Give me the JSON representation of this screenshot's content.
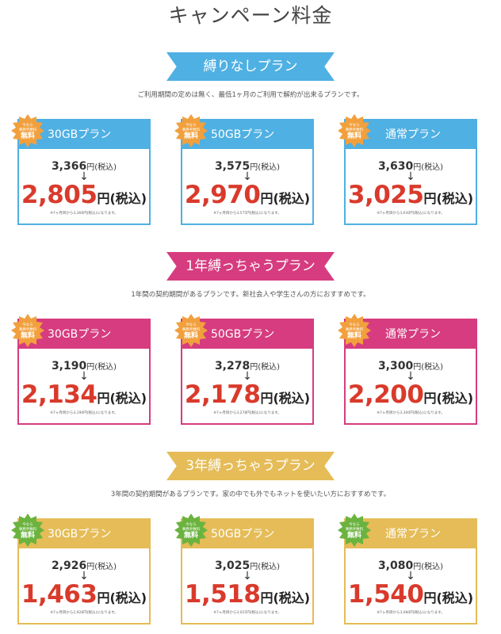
{
  "page_title": "キャンペーン料金",
  "badge": {
    "small_line": "今なら",
    "small_line2": "事務手数料",
    "big": "無料"
  },
  "colors": {
    "blue": "#4fb0e3",
    "pink": "#d63c7f",
    "gold": "#e5bc57",
    "price_red": "#d93a2b",
    "badge_orange": "#f2a03d",
    "badge_green": "#6bb33f"
  },
  "sections": [
    {
      "title": "縛りなしプラン",
      "description": "ご利用期間の定めは無く、最低1ヶ月のご利用で解約が出来るプランです。",
      "plans": [
        {
          "name": "30GBプラン",
          "regular": "3,366",
          "campaign": "2,805",
          "note": "※7ヶ月目から3,366円(税込)になります。"
        },
        {
          "name": "50GBプラン",
          "regular": "3,575",
          "campaign": "2,970",
          "note": "※7ヶ月目から3,575円(税込)になります。"
        },
        {
          "name": "通常プラン",
          "regular": "3,630",
          "campaign": "3,025",
          "note": "※7ヶ月目から3,630円(税込)になります。"
        }
      ]
    },
    {
      "title": "1年縛っちゃうプラン",
      "description": "1年間の契約期間があるプランです。新社会人や学生さんの方におすすめです。",
      "plans": [
        {
          "name": "30GBプラン",
          "regular": "3,190",
          "campaign": "2,134",
          "note": "※7ヶ月目から3,190円(税込)になります。"
        },
        {
          "name": "50GBプラン",
          "regular": "3,278",
          "campaign": "2,178",
          "note": "※7ヶ月目から3,278円(税込)になります。"
        },
        {
          "name": "通常プラン",
          "regular": "3,300",
          "campaign": "2,200",
          "note": "※7ヶ月目から3,300円(税込)になります。"
        }
      ]
    },
    {
      "title": "3年縛っちゃうプラン",
      "description": "3年間の契約期間があるプランです。家の中でも外でもネットを使いたい方におすすめです。",
      "plans": [
        {
          "name": "30GBプラン",
          "regular": "2,926",
          "campaign": "1,463",
          "note": "※7ヶ月目から2,926円(税込)になります。"
        },
        {
          "name": "50GBプラン",
          "regular": "3,025",
          "campaign": "1,518",
          "note": "※7ヶ月目から3,025円(税込)になります。"
        },
        {
          "name": "通常プラン",
          "regular": "3,080",
          "campaign": "1,540",
          "note": "※7ヶ月目から3,080円(税込)になります。"
        }
      ]
    }
  ],
  "labels": {
    "regular_unit": "円(税込)",
    "arrow": "↓",
    "campaign_unit": "円(税込)"
  }
}
